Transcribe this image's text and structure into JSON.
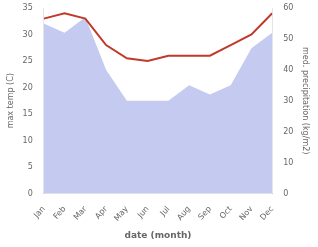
{
  "chart_data": {
    "type": "line",
    "xlabel": "date (month)",
    "ylabel": "max temp (C)",
    "y2label": "med. precipitation (kg/m2)",
    "categories": [
      "Jan",
      "Feb",
      "Mar",
      "Apr",
      "May",
      "Jun",
      "Jul",
      "Aug",
      "Sep",
      "Oct",
      "Nov",
      "Dec"
    ],
    "series": [
      {
        "type": "area",
        "color": "#c5caf0",
        "axis": "y2",
        "values": [
          55,
          52,
          57,
          40,
          30,
          30,
          30,
          35,
          32,
          35,
          47,
          52
        ]
      },
      {
        "type": "line",
        "color": "#c0392b",
        "values": [
          33,
          34,
          33,
          28,
          25.5,
          25,
          26,
          26,
          26,
          28,
          30,
          34
        ]
      }
    ],
    "ylim": [
      0,
      35
    ],
    "yticks": [
      0,
      5,
      10,
      15,
      20,
      25,
      30,
      35
    ],
    "y2lim": [
      0,
      60
    ],
    "y2ticks": [
      0,
      10,
      20,
      30,
      40,
      50,
      60
    ],
    "grid": false
  }
}
